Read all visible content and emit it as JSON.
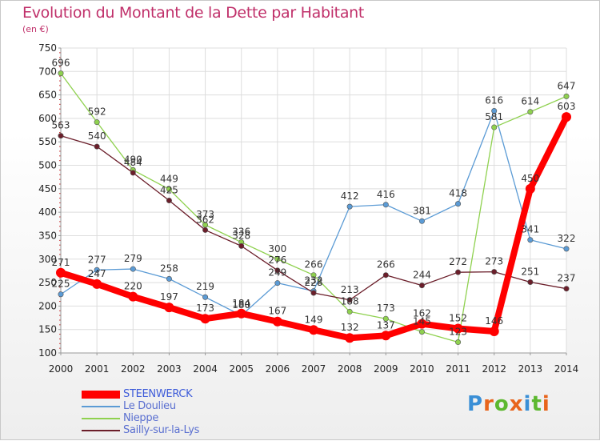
{
  "title": "Evolution du Montant de la Dette par Habitant",
  "unit": "(en €)",
  "logo": {
    "text": "Proxiti",
    "colors": [
      "#3a8fd6",
      "#e8641b",
      "#5cb82f",
      "#e8641b",
      "#3a8fd6",
      "#5cb82f",
      "#e8641b"
    ]
  },
  "chart_data": {
    "type": "line",
    "x": [
      2000,
      2001,
      2002,
      2003,
      2004,
      2005,
      2006,
      2007,
      2008,
      2009,
      2010,
      2011,
      2012,
      2013,
      2014
    ],
    "ylim": [
      100,
      750
    ],
    "yticks": [
      100,
      150,
      200,
      250,
      300,
      350,
      400,
      450,
      500,
      550,
      600,
      650,
      700,
      750
    ],
    "grid": true,
    "legend_position": "bottom-left",
    "series": [
      {
        "name": "STEENWERCK",
        "color": "#ff0000",
        "highlight": true,
        "values": [
          271,
          247,
          220,
          197,
          173,
          184,
          167,
          149,
          132,
          137,
          162,
          152,
          146,
          450,
          603
        ]
      },
      {
        "name": "Le Doulieu",
        "color": "#5b9bd5",
        "highlight": false,
        "values": [
          225,
          277,
          279,
          258,
          219,
          180,
          249,
          232,
          412,
          416,
          381,
          418,
          616,
          341,
          322
        ]
      },
      {
        "name": "Nieppe",
        "color": "#8fd14f",
        "highlight": false,
        "values": [
          696,
          592,
          490,
          449,
          373,
          336,
          300,
          266,
          188,
          173,
          145,
          123,
          581,
          614,
          647
        ]
      },
      {
        "name": "Sailly-sur-la-Lys",
        "color": "#6b1e2a",
        "highlight": false,
        "values": [
          563,
          540,
          484,
          425,
          362,
          328,
          276,
          228,
          213,
          266,
          244,
          272,
          273,
          251,
          237
        ]
      }
    ]
  }
}
